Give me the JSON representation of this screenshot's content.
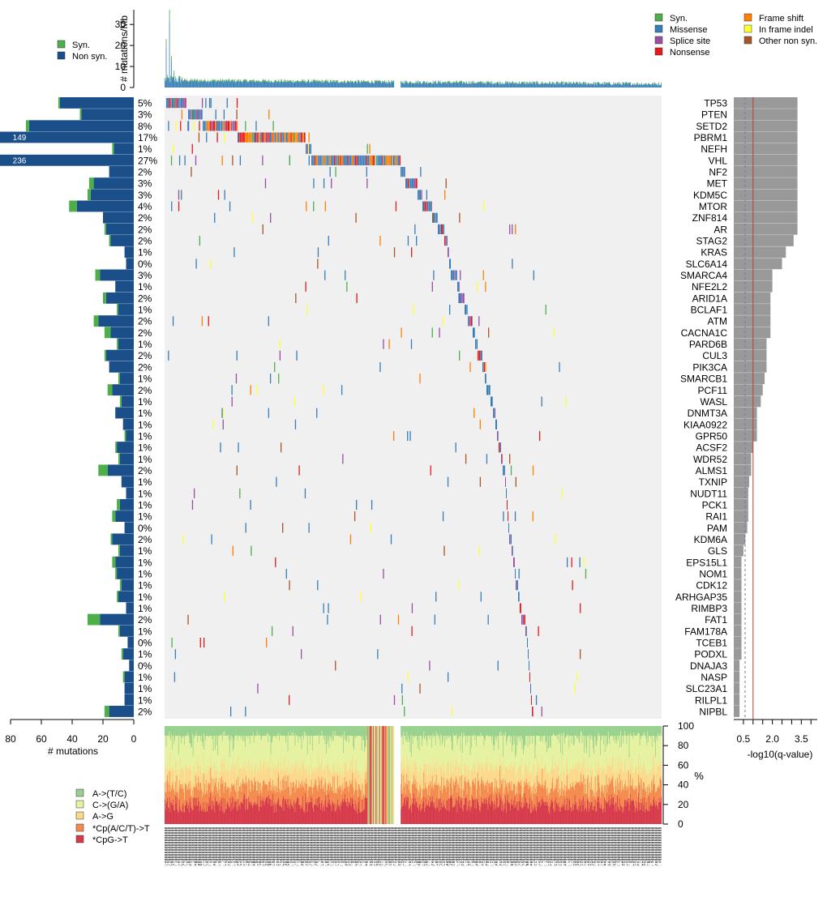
{
  "chart_data": {
    "type": "oncoplot",
    "top_axis": {
      "ylabel": "# mutations/Mb",
      "ticks": [
        "0",
        "10",
        "20",
        "30"
      ],
      "ylim": [
        0,
        37
      ]
    },
    "top_legend": [
      "Syn.",
      "Non syn."
    ],
    "class_legend": [
      "Syn.",
      "Missense",
      "Splice site",
      "Nonsense",
      "Frame shift",
      "In frame indel",
      "Other non syn."
    ],
    "genes": [
      {
        "name": "TP53",
        "pct": "5%",
        "syn": 1,
        "nonsyn": 48,
        "logq": 3.3
      },
      {
        "name": "PTEN",
        "pct": "3%",
        "syn": 1,
        "nonsyn": 34,
        "logq": 3.3
      },
      {
        "name": "SETD2",
        "pct": "8%",
        "syn": 2,
        "nonsyn": 68,
        "logq": 3.3
      },
      {
        "name": "PBRM1",
        "pct": "17%",
        "syn": 0,
        "nonsyn": 149,
        "logq": 3.3,
        "label": "149"
      },
      {
        "name": "NEFH",
        "pct": "1%",
        "syn": 1,
        "nonsyn": 13,
        "logq": 3.3
      },
      {
        "name": "VHL",
        "pct": "27%",
        "syn": 0,
        "nonsyn": 236,
        "logq": 3.3,
        "label": "236"
      },
      {
        "name": "NF2",
        "pct": "2%",
        "syn": 0,
        "nonsyn": 16,
        "logq": 3.3
      },
      {
        "name": "MET",
        "pct": "3%",
        "syn": 3,
        "nonsyn": 26,
        "logq": 3.3
      },
      {
        "name": "KDM5C",
        "pct": "3%",
        "syn": 2,
        "nonsyn": 28,
        "logq": 3.3
      },
      {
        "name": "MTOR",
        "pct": "4%",
        "syn": 5,
        "nonsyn": 37,
        "logq": 3.3
      },
      {
        "name": "ZNF814",
        "pct": "2%",
        "syn": 0,
        "nonsyn": 20,
        "logq": 3.3
      },
      {
        "name": "AR",
        "pct": "2%",
        "syn": 1,
        "nonsyn": 18,
        "logq": 3.3
      },
      {
        "name": "STAG2",
        "pct": "2%",
        "syn": 1,
        "nonsyn": 15,
        "logq": 3.1
      },
      {
        "name": "KRAS",
        "pct": "1%",
        "syn": 0,
        "nonsyn": 6,
        "logq": 2.7
      },
      {
        "name": "SLC6A14",
        "pct": "0%",
        "syn": 0,
        "nonsyn": 5,
        "logq": 2.5
      },
      {
        "name": "SMARCA4",
        "pct": "3%",
        "syn": 3,
        "nonsyn": 22,
        "logq": 2.0
      },
      {
        "name": "NFE2L2",
        "pct": "1%",
        "syn": 0,
        "nonsyn": 12,
        "logq": 2.0
      },
      {
        "name": "ARID1A",
        "pct": "2%",
        "syn": 2,
        "nonsyn": 18,
        "logq": 1.9
      },
      {
        "name": "BCLAF1",
        "pct": "1%",
        "syn": 1,
        "nonsyn": 10,
        "logq": 1.9
      },
      {
        "name": "ATM",
        "pct": "2%",
        "syn": 3,
        "nonsyn": 23,
        "logq": 1.9
      },
      {
        "name": "CACNA1C",
        "pct": "2%",
        "syn": 4,
        "nonsyn": 15,
        "logq": 1.9
      },
      {
        "name": "PARD6B",
        "pct": "1%",
        "syn": 1,
        "nonsyn": 10,
        "logq": 1.7
      },
      {
        "name": "CUL3",
        "pct": "2%",
        "syn": 1,
        "nonsyn": 18,
        "logq": 1.7
      },
      {
        "name": "PIK3CA",
        "pct": "2%",
        "syn": 0,
        "nonsyn": 16,
        "logq": 1.7
      },
      {
        "name": "SMARCB1",
        "pct": "1%",
        "syn": 1,
        "nonsyn": 9,
        "logq": 1.6
      },
      {
        "name": "PCF11",
        "pct": "2%",
        "syn": 3,
        "nonsyn": 14,
        "logq": 1.5
      },
      {
        "name": "WASL",
        "pct": "1%",
        "syn": 1,
        "nonsyn": 8,
        "logq": 1.4
      },
      {
        "name": "DNMT3A",
        "pct": "1%",
        "syn": 0,
        "nonsyn": 12,
        "logq": 1.2
      },
      {
        "name": "KIAA0922",
        "pct": "1%",
        "syn": 0,
        "nonsyn": 7,
        "logq": 1.2
      },
      {
        "name": "GPR50",
        "pct": "1%",
        "syn": 1,
        "nonsyn": 5,
        "logq": 1.2
      },
      {
        "name": "ACSF2",
        "pct": "1%",
        "syn": 1,
        "nonsyn": 11,
        "logq": 1.0
      },
      {
        "name": "WDR52",
        "pct": "1%",
        "syn": 1,
        "nonsyn": 9,
        "logq": 0.9
      },
      {
        "name": "ALMS1",
        "pct": "2%",
        "syn": 6,
        "nonsyn": 17,
        "logq": 0.9
      },
      {
        "name": "TXNIP",
        "pct": "1%",
        "syn": 0,
        "nonsyn": 8,
        "logq": 0.8
      },
      {
        "name": "NUDT11",
        "pct": "1%",
        "syn": 0,
        "nonsyn": 5,
        "logq": 0.75
      },
      {
        "name": "PCK1",
        "pct": "1%",
        "syn": 2,
        "nonsyn": 9,
        "logq": 0.75
      },
      {
        "name": "RAI1",
        "pct": "1%",
        "syn": 2,
        "nonsyn": 12,
        "logq": 0.75
      },
      {
        "name": "PAM",
        "pct": "0%",
        "syn": 0,
        "nonsyn": 6,
        "logq": 0.7
      },
      {
        "name": "KDM6A",
        "pct": "2%",
        "syn": 1,
        "nonsyn": 14,
        "logq": 0.6
      },
      {
        "name": "GLS",
        "pct": "1%",
        "syn": 1,
        "nonsyn": 9,
        "logq": 0.5
      },
      {
        "name": "EPS15L1",
        "pct": "1%",
        "syn": 2,
        "nonsyn": 12,
        "logq": 0.4
      },
      {
        "name": "NOM1",
        "pct": "1%",
        "syn": 1,
        "nonsyn": 11,
        "logq": 0.4
      },
      {
        "name": "CDK12",
        "pct": "1%",
        "syn": 1,
        "nonsyn": 8,
        "logq": 0.4
      },
      {
        "name": "ARHGAP35",
        "pct": "1%",
        "syn": 1,
        "nonsyn": 10,
        "logq": 0.4
      },
      {
        "name": "RIMBP3",
        "pct": "1%",
        "syn": 0,
        "nonsyn": 5,
        "logq": 0.4
      },
      {
        "name": "FAT1",
        "pct": "2%",
        "syn": 8,
        "nonsyn": 22,
        "logq": 0.4
      },
      {
        "name": "FAM178A",
        "pct": "1%",
        "syn": 1,
        "nonsyn": 9,
        "logq": 0.4
      },
      {
        "name": "TCEB1",
        "pct": "0%",
        "syn": 0,
        "nonsyn": 4,
        "logq": 0.4
      },
      {
        "name": "PODXL",
        "pct": "1%",
        "syn": 1,
        "nonsyn": 7,
        "logq": 0.4
      },
      {
        "name": "DNAJA3",
        "pct": "0%",
        "syn": 0,
        "nonsyn": 3,
        "logq": 0.3
      },
      {
        "name": "NASP",
        "pct": "1%",
        "syn": 1,
        "nonsyn": 6,
        "logq": 0.3
      },
      {
        "name": "SLC23A1",
        "pct": "1%",
        "syn": 0,
        "nonsyn": 6,
        "logq": 0.3
      },
      {
        "name": "RILPL1",
        "pct": "1%",
        "syn": 0,
        "nonsyn": 6,
        "logq": 0.3
      },
      {
        "name": "NIPBL",
        "pct": "2%",
        "syn": 3,
        "nonsyn": 16,
        "logq": 0.3
      }
    ],
    "left_axis": {
      "xlabel": "# mutations",
      "ticks": [
        "80",
        "60",
        "40",
        "20",
        "0"
      ],
      "xlim": [
        0,
        80
      ]
    },
    "right_axis": {
      "xlabel": "-log10(q-value)",
      "ticks": [
        "0.5",
        "2.0",
        "3.5"
      ],
      "xlim": [
        0,
        4.2
      ],
      "threshold": 1
    }
  },
  "spectrum": {
    "axis_label": "%",
    "ticks": [
      "0",
      "20",
      "40",
      "60",
      "80",
      "100"
    ],
    "legend": [
      "A->(T/C)",
      "C->(G/A)",
      "A->G",
      "*Cp(A/C/T)->T",
      "*CpG->T"
    ]
  },
  "colors": {
    "syn": "#4DAF4A",
    "missense": "#377EB8",
    "splice": "#984EA3",
    "nonsense": "#E41A1C",
    "frameshift": "#FF7F00",
    "inframe": "#FFFF33",
    "other": "#A65628",
    "nonsyn_bar": "#1B4F8A",
    "qbar": "#999999",
    "panel": "#F0F0F0"
  }
}
